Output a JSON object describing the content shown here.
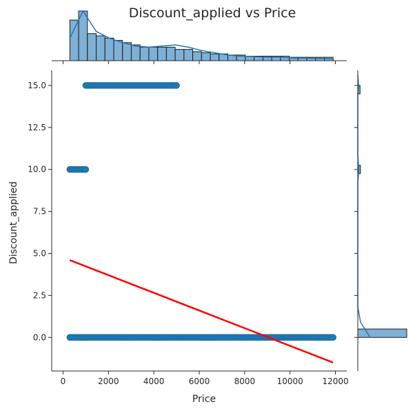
{
  "chart_data": {
    "type": "scatter",
    "title": "Discount_applied vs Price",
    "xlabel": "Price",
    "ylabel": "Discount_applied",
    "xlim": [
      -500,
      12500
    ],
    "ylim": [
      -2.0,
      15.9
    ],
    "x_ticks": [
      0,
      2000,
      4000,
      6000,
      8000,
      10000,
      12000
    ],
    "x_tick_labels": [
      "0",
      "2000",
      "4000",
      "6000",
      "8000",
      "10000",
      "12000"
    ],
    "y_ticks": [
      0.0,
      2.5,
      5.0,
      7.5,
      10.0,
      12.5,
      15.0
    ],
    "y_tick_labels": [
      "0.0",
      "2.5",
      "5.0",
      "7.5",
      "10.0",
      "12.5",
      "15.0"
    ],
    "grid": false,
    "legend": "none",
    "colors": {
      "points": "#1f77b4",
      "regression": "#ff0000",
      "hist_fill": "#7fb0d6",
      "kde": "#1f77b4"
    },
    "scatter_bands": [
      {
        "y": 15,
        "x_min": 1000,
        "x_max": 5000
      },
      {
        "y": 10,
        "x_min": 300,
        "x_max": 1000
      },
      {
        "y": 0,
        "x_min": 300,
        "x_max": 11900
      }
    ],
    "regression_line": {
      "x": [
        300,
        11900
      ],
      "y": [
        4.6,
        -1.5
      ]
    },
    "marginal_x_histogram": {
      "bin_start": 300,
      "bin_width": 386.7,
      "counts": [
        18,
        22,
        12,
        11,
        10,
        9,
        8,
        7,
        6,
        6,
        6,
        6,
        5,
        5,
        4,
        3.5,
        3,
        3,
        2.5,
        2.5,
        2,
        2,
        2,
        2,
        2,
        1.5,
        1.5,
        1.5,
        1.5,
        1.5
      ],
      "kde_y": [
        10,
        22,
        13,
        10,
        8,
        6.5,
        6,
        6.5,
        7,
        6,
        4.5,
        3.5,
        2.5,
        2,
        1.8,
        1.5,
        1.5,
        1.2,
        1.2,
        1,
        0.8
      ]
    },
    "marginal_y_histogram": {
      "bins": [
        {
          "y_from": 15.0,
          "y_to": 14.5,
          "count": 3
        },
        {
          "y_from": 10.25,
          "y_to": 9.75,
          "count": 3.5
        },
        {
          "y_from": 0.5,
          "y_to": 0.0,
          "count": 65
        }
      ],
      "kde_points": [
        [
          15.6,
          0
        ],
        [
          15.0,
          1.2
        ],
        [
          14.5,
          0
        ],
        [
          10.8,
          0
        ],
        [
          10.0,
          1.4
        ],
        [
          9.2,
          0
        ],
        [
          1.8,
          0
        ],
        [
          0.9,
          4
        ],
        [
          0.0,
          18
        ]
      ]
    }
  }
}
